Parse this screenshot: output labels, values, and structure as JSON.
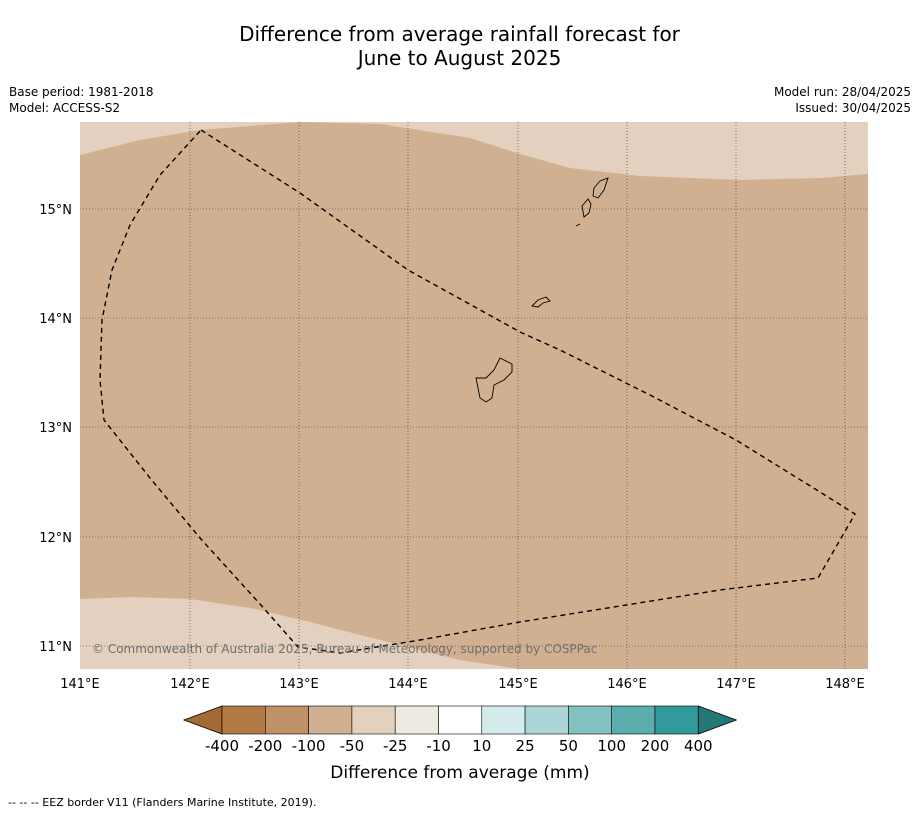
{
  "title_line1": "Difference from average rainfall forecast for",
  "title_line2": "June to August 2025",
  "meta_left": [
    "Base period: 1981-2018",
    "Model: ACCESS-S2"
  ],
  "meta_right": [
    "Model run: 28/04/2025",
    "Issued: 30/04/2025"
  ],
  "copyright": "© Commonwealth of Australia 2025, Bureau of Meteorology, supported by COSPPac",
  "lon_ticks": [
    "141°E",
    "142°E",
    "143°E",
    "144°E",
    "145°E",
    "146°E",
    "147°E",
    "148°E"
  ],
  "lat_ticks": [
    "15°N",
    "14°N",
    "13°N",
    "12°N",
    "11°N"
  ],
  "colorbar": {
    "labels": [
      "-400",
      "-200",
      "-100",
      "-50",
      "-25",
      "-10",
      "10",
      "25",
      "50",
      "100",
      "200",
      "400"
    ],
    "colors": [
      "#a36a35",
      "#b07c44",
      "#c09166",
      "#d1b092",
      "#e3d0be",
      "#efe9e4",
      "#ffffff",
      "#d5eaea",
      "#acd6d6",
      "#84c2c2",
      "#5aaeae",
      "#329a9a",
      "#257878"
    ],
    "title": "Difference from average (mm)"
  },
  "map_colors": {
    "dominant": "#d1b092",
    "light": "#e3d0be"
  },
  "footer": "--  --  -- EEZ border V11 (Flanders Marine Institute, 2019)."
}
